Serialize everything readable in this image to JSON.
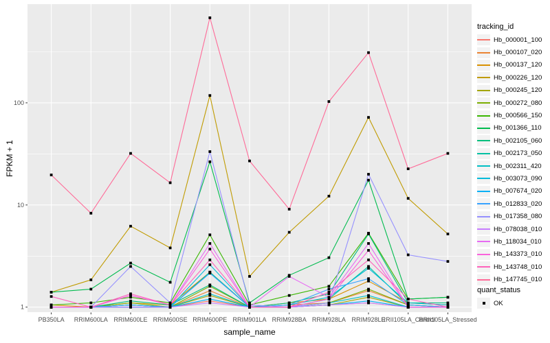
{
  "figure": {
    "background": "#FFFFFF",
    "panel_background": "#EBEBEB",
    "grid_color": "#FFFFFF",
    "axis_text_color": "#4D4D4D",
    "tick_color": "#333333",
    "legend_key_background": "#F2F2F2",
    "point_color": "#000000"
  },
  "chart_data": {
    "type": "line",
    "title": "",
    "xlabel": "sample_name",
    "ylabel": "FPKM + 1",
    "y_scale": "log10",
    "grid": true,
    "legend_position": "right",
    "y_ticks": [
      1,
      10,
      100
    ],
    "y_tick_labels": [
      "1",
      "10",
      "100"
    ],
    "y_minor_ticks": [
      3.162,
      31.623,
      316.228
    ],
    "ylim": [
      0.85,
      900
    ],
    "categories": [
      "PB350LA",
      "RRIM600LA",
      "RRIM600LE",
      "RRIM600SE",
      "RRIM600PE",
      "RRIM901LA",
      "RRIM928BA",
      "RRIM928LA",
      "RRIM928LE",
      "RRII105LA_Control",
      "RRII105LA_Stressed"
    ],
    "series": [
      {
        "name": "Hb_000001_100",
        "color": "#F8766D",
        "values": [
          1.0,
          1.0,
          1.0,
          1.0,
          1.15,
          1.0,
          1.0,
          1.05,
          1.1,
          1.0,
          1.0
        ]
      },
      {
        "name": "Hb_000107_020",
        "color": "#EA8331",
        "values": [
          1.0,
          1.0,
          1.05,
          1.0,
          1.45,
          1.0,
          1.05,
          1.1,
          1.45,
          1.05,
          1.0
        ]
      },
      {
        "name": "Hb_000137_120",
        "color": "#D89000",
        "values": [
          1.05,
          1.0,
          1.1,
          1.05,
          2.2,
          1.0,
          1.1,
          1.2,
          1.8,
          1.1,
          1.05
        ]
      },
      {
        "name": "Hb_000226_120",
        "color": "#C09B00",
        "values": [
          1.4,
          1.85,
          6.2,
          3.8,
          118,
          2.0,
          5.4,
          12.2,
          72,
          11.6,
          5.2
        ]
      },
      {
        "name": "Hb_000245_120",
        "color": "#A3A500",
        "values": [
          1.0,
          1.0,
          1.05,
          1.0,
          1.3,
          1.0,
          1.0,
          1.05,
          1.25,
          1.0,
          1.0
        ]
      },
      {
        "name": "Hb_000272_080",
        "color": "#7CAE00",
        "values": [
          1.0,
          1.0,
          1.1,
          1.0,
          1.6,
          1.0,
          1.0,
          1.1,
          1.5,
          1.05,
          1.0
        ]
      },
      {
        "name": "Hb_000566_150",
        "color": "#39B600",
        "values": [
          1.05,
          1.1,
          1.25,
          1.1,
          5.1,
          1.05,
          1.3,
          1.6,
          5.3,
          1.2,
          1.25
        ]
      },
      {
        "name": "Hb_001366_110",
        "color": "#00BB4E",
        "values": [
          1.4,
          1.5,
          2.7,
          1.75,
          26.5,
          1.1,
          2.05,
          3.05,
          17.5,
          1.2,
          1.25
        ]
      },
      {
        "name": "Hb_002105_060",
        "color": "#00BF7D",
        "values": [
          1.0,
          1.0,
          1.15,
          1.05,
          1.65,
          1.0,
          1.1,
          1.35,
          5.2,
          1.1,
          1.1
        ]
      },
      {
        "name": "Hb_002173_050",
        "color": "#00C1A3",
        "values": [
          1.0,
          1.0,
          1.05,
          1.0,
          2.2,
          1.0,
          1.0,
          1.2,
          2.5,
          1.05,
          1.0
        ]
      },
      {
        "name": "Hb_002311_420",
        "color": "#00BFC4",
        "values": [
          1.0,
          1.0,
          1.0,
          1.0,
          1.35,
          1.0,
          1.0,
          1.1,
          1.3,
          1.0,
          1.0
        ]
      },
      {
        "name": "Hb_003073_090",
        "color": "#00BBDA",
        "values": [
          1.0,
          1.0,
          1.05,
          1.0,
          2.6,
          1.0,
          1.05,
          1.25,
          2.4,
          1.1,
          1.05
        ]
      },
      {
        "name": "Hb_007674_020",
        "color": "#00B0F6",
        "values": [
          1.0,
          1.0,
          1.0,
          1.0,
          1.2,
          1.0,
          1.0,
          1.05,
          1.15,
          1.0,
          1.0
        ]
      },
      {
        "name": "Hb_012833_020",
        "color": "#35A2FF",
        "values": [
          1.0,
          1.0,
          1.05,
          1.0,
          2.15,
          1.0,
          1.05,
          1.5,
          1.9,
          1.05,
          1.0
        ]
      },
      {
        "name": "Hb_017358_080",
        "color": "#9590FF",
        "values": [
          1.0,
          1.0,
          2.5,
          1.1,
          33.3,
          1.05,
          1.0,
          1.1,
          20.0,
          3.25,
          2.8
        ]
      },
      {
        "name": "Hb_078038_010",
        "color": "#C77CFF",
        "values": [
          1.0,
          1.0,
          1.0,
          1.0,
          1.1,
          1.0,
          1.0,
          1.05,
          1.1,
          1.0,
          1.0
        ]
      },
      {
        "name": "Hb_118034_010",
        "color": "#E76BF3",
        "values": [
          1.0,
          1.0,
          1.3,
          1.05,
          4.2,
          1.0,
          2.0,
          1.25,
          4.2,
          1.0,
          1.0
        ]
      },
      {
        "name": "Hb_143373_010",
        "color": "#FA62DB",
        "values": [
          1.0,
          1.0,
          1.3,
          1.05,
          3.7,
          1.0,
          1.0,
          1.2,
          3.6,
          1.0,
          1.0
        ]
      },
      {
        "name": "Hb_143748_010",
        "color": "#FF62BC",
        "values": [
          1.27,
          1.0,
          1.35,
          1.05,
          2.9,
          1.0,
          1.0,
          1.4,
          2.9,
          1.2,
          1.0
        ]
      },
      {
        "name": "Hb_147745_010",
        "color": "#FF6A98",
        "values": [
          19.7,
          8.3,
          32.0,
          16.5,
          680,
          27.0,
          9.1,
          103,
          310,
          22.6,
          32.0
        ]
      }
    ],
    "quant_status": {
      "value": "OK",
      "marker": "filled-square"
    },
    "legend": {
      "series_title": "tracking_id",
      "quant_title": "quant_status",
      "quant_value": "OK"
    }
  }
}
